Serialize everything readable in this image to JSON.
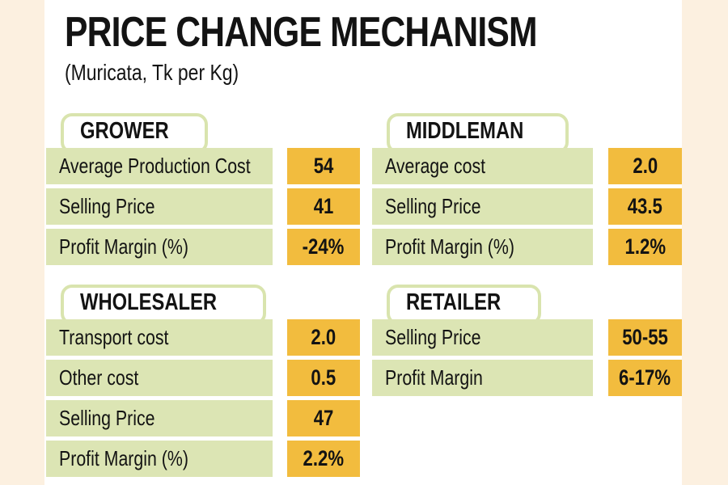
{
  "title": "PRICE CHANGE MECHANISM",
  "subtitle": "(Muricata, Tk per Kg)",
  "colors": {
    "page_background": "#fcf0e0",
    "card_background": "#ffffff",
    "label_cell_green": "#dce5b4",
    "value_cell_orange": "#f2bc3e",
    "tab_border_green": "#d9e4ae",
    "text": "#131313"
  },
  "chart_data": {
    "type": "table",
    "title": "PRICE CHANGE MECHANISM",
    "subtitle": "(Muricata, Tk per Kg)",
    "unit": "Tk per Kg",
    "panels": {
      "grower": {
        "name": "GROWER",
        "rows": [
          {
            "label": "Average Production Cost",
            "value": "54"
          },
          {
            "label": "Selling Price",
            "value": "41"
          },
          {
            "label": "Profit Margin (%)",
            "value": "-24%"
          }
        ]
      },
      "middleman": {
        "name": "MIDDLEMAN",
        "rows": [
          {
            "label": "Average cost",
            "value": "2.0"
          },
          {
            "label": "Selling Price",
            "value": "43.5"
          },
          {
            "label": "Profit Margin (%)",
            "value": "1.2%"
          }
        ]
      },
      "wholesaler": {
        "name": "WHOLESALER",
        "rows": [
          {
            "label": "Transport cost",
            "value": "2.0"
          },
          {
            "label": "Other cost",
            "value": "0.5"
          },
          {
            "label": "Selling Price",
            "value": "47"
          },
          {
            "label": "Profit Margin (%)",
            "value": "2.2%"
          }
        ]
      },
      "retailer": {
        "name": "RETAILER",
        "rows": [
          {
            "label": "Selling Price",
            "value": "50-55"
          },
          {
            "label": "Profit Margin",
            "value": "6-17%"
          }
        ]
      }
    }
  }
}
